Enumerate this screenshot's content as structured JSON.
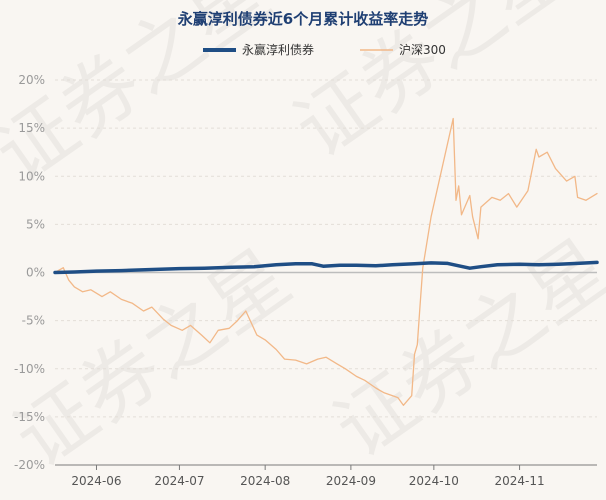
{
  "chart_data": {
    "type": "line",
    "title": "永赢淳利债券近6个月累计收益率走势",
    "legend_position": "top",
    "grid": true,
    "y_tick_labels": [
      "20%",
      "15%",
      "10%",
      "5%",
      "0%",
      "-5%",
      "-10%",
      "-15%",
      "-20%"
    ],
    "ylim": [
      -20,
      20
    ],
    "x_tick_labels": [
      "2024-06",
      "2024-07",
      "2024-08",
      "2024-09",
      "2024-10",
      "2024-11"
    ],
    "x_tick_dates": [
      "2024-06-01",
      "2024-07-01",
      "2024-08-01",
      "2024-09-01",
      "2024-10-01",
      "2024-11-01"
    ],
    "xlim": [
      "2024-05-17",
      "2024-11-29"
    ],
    "series": [
      {
        "name": "永赢淳利债券",
        "color": "#1f4e85",
        "points": [
          [
            "2024-05-17",
            0.0
          ],
          [
            "2024-05-24",
            0.05
          ],
          [
            "2024-06-01",
            0.15
          ],
          [
            "2024-06-10",
            0.2
          ],
          [
            "2024-06-20",
            0.3
          ],
          [
            "2024-07-01",
            0.4
          ],
          [
            "2024-07-10",
            0.45
          ],
          [
            "2024-07-20",
            0.55
          ],
          [
            "2024-07-28",
            0.6
          ],
          [
            "2024-08-05",
            0.8
          ],
          [
            "2024-08-12",
            0.9
          ],
          [
            "2024-08-18",
            0.9
          ],
          [
            "2024-08-22",
            0.65
          ],
          [
            "2024-08-28",
            0.75
          ],
          [
            "2024-09-03",
            0.75
          ],
          [
            "2024-09-10",
            0.7
          ],
          [
            "2024-09-16",
            0.8
          ],
          [
            "2024-09-24",
            0.9
          ],
          [
            "2024-09-30",
            1.0
          ],
          [
            "2024-10-06",
            0.95
          ],
          [
            "2024-10-10",
            0.7
          ],
          [
            "2024-10-14",
            0.45
          ],
          [
            "2024-10-18",
            0.6
          ],
          [
            "2024-10-24",
            0.8
          ],
          [
            "2024-11-01",
            0.85
          ],
          [
            "2024-11-08",
            0.8
          ],
          [
            "2024-11-15",
            0.85
          ],
          [
            "2024-11-22",
            0.95
          ],
          [
            "2024-11-29",
            1.05
          ]
        ]
      },
      {
        "name": "沪深300",
        "color": "#f2b888",
        "points": [
          [
            "2024-05-17",
            0.0
          ],
          [
            "2024-05-20",
            0.5
          ],
          [
            "2024-05-22",
            -0.8
          ],
          [
            "2024-05-24",
            -1.5
          ],
          [
            "2024-05-27",
            -2.0
          ],
          [
            "2024-05-30",
            -1.8
          ],
          [
            "2024-06-03",
            -2.5
          ],
          [
            "2024-06-06",
            -2.0
          ],
          [
            "2024-06-10",
            -2.8
          ],
          [
            "2024-06-14",
            -3.2
          ],
          [
            "2024-06-18",
            -4.0
          ],
          [
            "2024-06-21",
            -3.6
          ],
          [
            "2024-06-25",
            -4.8
          ],
          [
            "2024-06-28",
            -5.5
          ],
          [
            "2024-07-02",
            -6.0
          ],
          [
            "2024-07-05",
            -5.5
          ],
          [
            "2024-07-09",
            -6.5
          ],
          [
            "2024-07-12",
            -7.3
          ],
          [
            "2024-07-15",
            -6.0
          ],
          [
            "2024-07-19",
            -5.8
          ],
          [
            "2024-07-22",
            -5.0
          ],
          [
            "2024-07-25",
            -4.0
          ],
          [
            "2024-07-29",
            -6.5
          ],
          [
            "2024-08-01",
            -7.0
          ],
          [
            "2024-08-05",
            -8.0
          ],
          [
            "2024-08-08",
            -9.0
          ],
          [
            "2024-08-12",
            -9.1
          ],
          [
            "2024-08-16",
            -9.5
          ],
          [
            "2024-08-20",
            -9.0
          ],
          [
            "2024-08-23",
            -8.8
          ],
          [
            "2024-08-27",
            -9.5
          ],
          [
            "2024-08-30",
            -10.0
          ],
          [
            "2024-09-03",
            -10.8
          ],
          [
            "2024-09-06",
            -11.2
          ],
          [
            "2024-09-10",
            -12.0
          ],
          [
            "2024-09-13",
            -12.5
          ],
          [
            "2024-09-18",
            -13.0
          ],
          [
            "2024-09-20",
            -13.8
          ],
          [
            "2024-09-23",
            -12.8
          ],
          [
            "2024-09-24",
            -8.5
          ],
          [
            "2024-09-25",
            -7.5
          ],
          [
            "2024-09-26",
            -3.5
          ],
          [
            "2024-09-27",
            0.5
          ],
          [
            "2024-09-30",
            5.8
          ],
          [
            "2024-10-08",
            16.0
          ],
          [
            "2024-10-09",
            7.5
          ],
          [
            "2024-10-10",
            9.0
          ],
          [
            "2024-10-11",
            6.0
          ],
          [
            "2024-10-14",
            8.0
          ],
          [
            "2024-10-15",
            5.8
          ],
          [
            "2024-10-17",
            3.5
          ],
          [
            "2024-10-18",
            6.8
          ],
          [
            "2024-10-22",
            7.8
          ],
          [
            "2024-10-25",
            7.5
          ],
          [
            "2024-10-28",
            8.2
          ],
          [
            "2024-10-31",
            6.8
          ],
          [
            "2024-11-04",
            8.5
          ],
          [
            "2024-11-07",
            12.8
          ],
          [
            "2024-11-08",
            12.0
          ],
          [
            "2024-11-11",
            12.5
          ],
          [
            "2024-11-14",
            10.8
          ],
          [
            "2024-11-18",
            9.5
          ],
          [
            "2024-11-21",
            10.0
          ],
          [
            "2024-11-22",
            7.8
          ],
          [
            "2024-11-25",
            7.5
          ],
          [
            "2024-11-29",
            8.2
          ]
        ]
      }
    ]
  }
}
